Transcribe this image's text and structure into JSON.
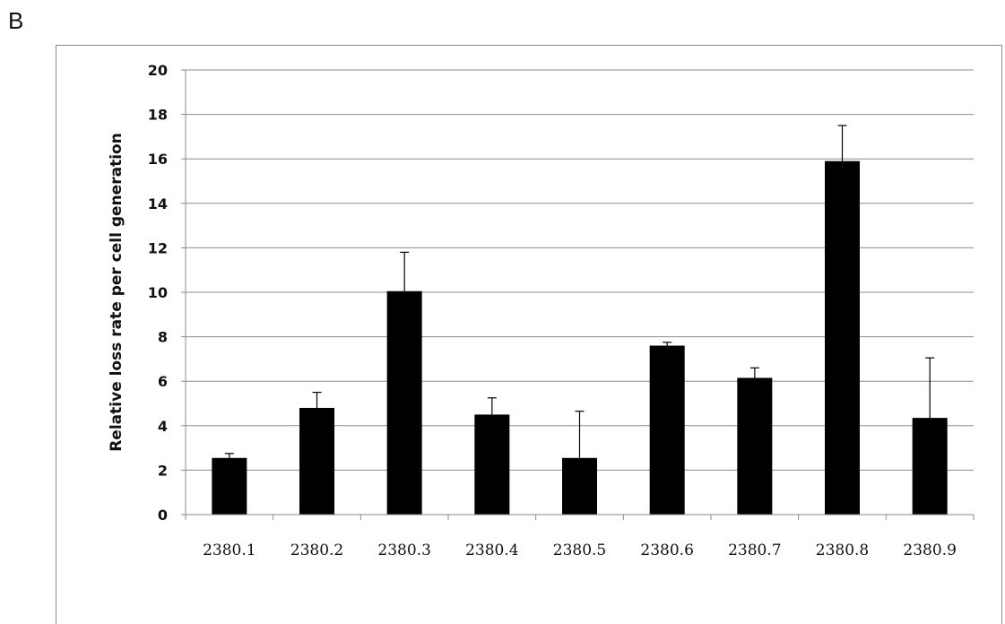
{
  "panel_label": "B",
  "chart_data": {
    "type": "bar",
    "title": "",
    "xlabel": "",
    "ylabel": "Relative loss rate per cell generation",
    "categories": [
      "2380.1",
      "2380.2",
      "2380.3",
      "2380.4",
      "2380.5",
      "2380.6",
      "2380.7",
      "2380.8",
      "2380.9"
    ],
    "values": [
      2.55,
      4.8,
      10.05,
      4.5,
      2.55,
      7.6,
      6.15,
      15.9,
      4.35
    ],
    "error_plus": [
      0.2,
      0.7,
      1.75,
      0.75,
      2.1,
      0.15,
      0.45,
      1.6,
      2.7
    ],
    "ylim": [
      0,
      20
    ],
    "yticks": [
      0,
      2,
      4,
      6,
      8,
      10,
      12,
      14,
      16,
      18,
      20
    ],
    "grid": true,
    "legend": "none",
    "bar_color": "#000000",
    "grid_color": "#8c8c8c"
  }
}
